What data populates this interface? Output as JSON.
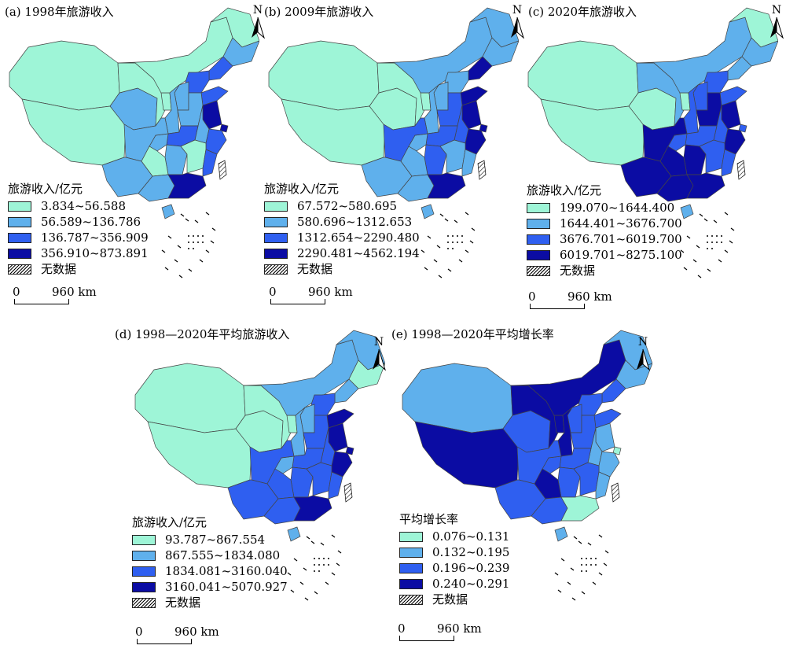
{
  "colors": {
    "c1": "#9ef5d7",
    "c2": "#5fb0ec",
    "c3": "#2f5ff0",
    "c4": "#0b0ca3",
    "nodata": "hatch"
  },
  "north_label": "N",
  "scale": {
    "zero": "0",
    "dist": "960 km"
  },
  "panels": [
    {
      "title": "(a) 1998年旅游收入",
      "legend_title": "旅游收入/亿元",
      "classes": [
        "3.834~56.588",
        "56.589~136.786",
        "136.787~356.909",
        "356.910~873.891"
      ],
      "nodata_label": "无数据",
      "regions": {
        "xinjiang": "c1",
        "tibet": "c1",
        "qinghai": "c2",
        "gansu": "c1",
        "innermongolia": "c1",
        "heilongjiang": "c1",
        "jilin": "c2",
        "liaoning": "c3",
        "sichuan": "c2",
        "yunnan": "c2",
        "guizhou": "c1",
        "chongqing": "c2",
        "shaanxi": "c2",
        "ningxia": "c1",
        "shanxi": "c2",
        "hebei": "c3",
        "beijing": "c4",
        "shandong": "c3",
        "henan": "c2",
        "hubei": "c3",
        "hunan": "c2",
        "guangxi": "c2",
        "guangdong": "c4",
        "jiangxi": "c1",
        "fujian": "c3",
        "zhejiang": "c3",
        "jiangsu": "c4",
        "shanghai": "c4",
        "anhui": "c2",
        "hainan": "c2"
      }
    },
    {
      "title": "(b) 2009年旅游收入",
      "legend_title": "旅游收入/亿元",
      "classes": [
        "67.572~580.695",
        "580.696~1312.653",
        "1312.654~2290.480",
        "2290.481~4562.194"
      ],
      "nodata_label": "无数据",
      "regions": {
        "xinjiang": "c1",
        "tibet": "c1",
        "qinghai": "c1",
        "gansu": "c1",
        "innermongolia": "c2",
        "heilongjiang": "c2",
        "jilin": "c2",
        "liaoning": "c4",
        "sichuan": "c3",
        "yunnan": "c2",
        "guizhou": "c2",
        "chongqing": "c2",
        "shaanxi": "c2",
        "ningxia": "c1",
        "shanxi": "c2",
        "hebei": "c2",
        "beijing": "c4",
        "shandong": "c4",
        "henan": "c3",
        "hubei": "c3",
        "hunan": "c3",
        "guangxi": "c2",
        "guangdong": "c4",
        "jiangxi": "c2",
        "fujian": "c2",
        "zhejiang": "c4",
        "jiangsu": "c4",
        "shanghai": "c4",
        "anhui": "c3",
        "hainan": "c2"
      }
    },
    {
      "title": "(c) 2020年旅游收入",
      "legend_title": "旅游收入/亿元",
      "classes": [
        "199.070~1644.400",
        "1644.401~3676.700",
        "3676.701~6019.700",
        "6019.701~8275.100"
      ],
      "nodata_label": "无数据",
      "regions": {
        "xinjiang": "c1",
        "tibet": "c1",
        "qinghai": "c1",
        "gansu": "c2",
        "innermongolia": "c2",
        "heilongjiang": "c1",
        "jilin": "c2",
        "liaoning": "c2",
        "sichuan": "c4",
        "yunnan": "c4",
        "guizhou": "c4",
        "chongqing": "c3",
        "shaanxi": "c3",
        "ningxia": "c1",
        "shanxi": "c3",
        "hebei": "c3",
        "beijing": "c2",
        "shandong": "c3",
        "henan": "c4",
        "hubei": "c3",
        "hunan": "c4",
        "guangxi": "c4",
        "guangdong": "c4",
        "jiangxi": "c3",
        "fujian": "c3",
        "zhejiang": "c4",
        "jiangsu": "c4",
        "shanghai": "c3",
        "anhui": "c3",
        "hainan": "c2"
      }
    },
    {
      "title": "(d) 1998—2020年平均旅游收入",
      "legend_title": "旅游收入/亿元",
      "classes": [
        "93.787~867.554",
        "867.555~1834.080",
        "1834.081~3160.040",
        "3160.041~5070.927"
      ],
      "nodata_label": "无数据",
      "regions": {
        "xinjiang": "c1",
        "tibet": "c1",
        "qinghai": "c1",
        "gansu": "c1",
        "innermongolia": "c2",
        "heilongjiang": "c2",
        "jilin": "c1",
        "liaoning": "c2",
        "sichuan": "c3",
        "yunnan": "c3",
        "guizhou": "c3",
        "chongqing": "c2",
        "shaanxi": "c2",
        "ningxia": "c1",
        "shanxi": "c2",
        "hebei": "c3",
        "beijing": "c4",
        "shandong": "c4",
        "henan": "c3",
        "hubei": "c3",
        "hunan": "c3",
        "guangxi": "c3",
        "guangdong": "c4",
        "jiangxi": "c3",
        "fujian": "c3",
        "zhejiang": "c4",
        "jiangsu": "c4",
        "shanghai": "c4",
        "anhui": "c3",
        "hainan": "c2"
      }
    },
    {
      "title": "(e) 1998—2020年平均增长率",
      "legend_title": "平均增长率",
      "classes": [
        "0.076~0.131",
        "0.132~0.195",
        "0.196~0.239",
        "0.240~0.291"
      ],
      "nodata_label": "无数据",
      "regions": {
        "xinjiang": "c2",
        "tibet": "c4",
        "qinghai": "c3",
        "gansu": "c4",
        "innermongolia": "c4",
        "heilongjiang": "c2",
        "jilin": "c2",
        "liaoning": "c3",
        "sichuan": "c3",
        "yunnan": "c3",
        "guizhou": "c4",
        "chongqing": "c3",
        "shaanxi": "c4",
        "ningxia": "c4",
        "shanxi": "c3",
        "hebei": "c3",
        "beijing": "c2",
        "shandong": "c3",
        "henan": "c3",
        "hubei": "c3",
        "hunan": "c3",
        "guangxi": "c3",
        "guangdong": "c1",
        "jiangxi": "c3",
        "fujian": "c2",
        "zhejiang": "c2",
        "jiangsu": "c2",
        "shanghai": "c1",
        "anhui": "c2",
        "hainan": "c2"
      }
    }
  ]
}
